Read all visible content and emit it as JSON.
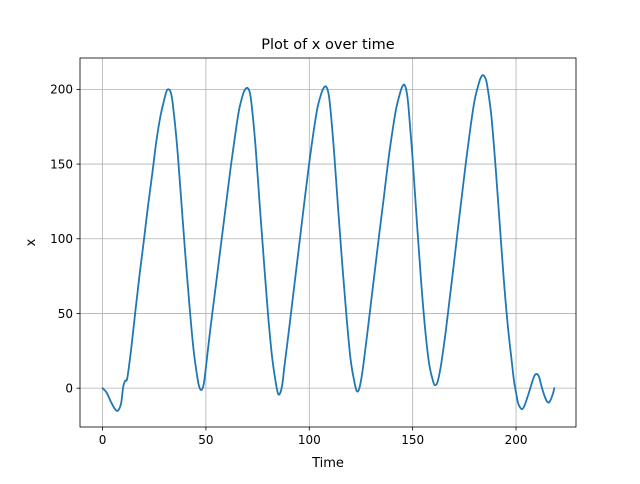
{
  "chart_data": {
    "type": "line",
    "title": "Plot of x over time",
    "xlabel": "Time",
    "ylabel": "x",
    "xlim": [
      -10.9,
      229
    ],
    "ylim": [
      -26,
      221
    ],
    "xticks": [
      0,
      50,
      100,
      150,
      200
    ],
    "yticks": [
      0,
      50,
      100,
      150,
      200
    ],
    "grid": true,
    "line_color": "#1f77b4",
    "series": [
      {
        "points": [
          [
            0,
            0
          ],
          [
            2,
            -3
          ],
          [
            4,
            -9
          ],
          [
            6,
            -14
          ],
          [
            7.5,
            -15
          ],
          [
            9,
            -10
          ],
          [
            10,
            1
          ],
          [
            11,
            5
          ],
          [
            12,
            7
          ],
          [
            14,
            28
          ],
          [
            16,
            53
          ],
          [
            18,
            77
          ],
          [
            20,
            99
          ],
          [
            22,
            122
          ],
          [
            24,
            143
          ],
          [
            26,
            165
          ],
          [
            28,
            182
          ],
          [
            30,
            194
          ],
          [
            31,
            199
          ],
          [
            32,
            200
          ],
          [
            33,
            198
          ],
          [
            34,
            190
          ],
          [
            36,
            163
          ],
          [
            38,
            127
          ],
          [
            40,
            90
          ],
          [
            42,
            56
          ],
          [
            44,
            26
          ],
          [
            46,
            6
          ],
          [
            47,
            0
          ],
          [
            48,
            -1
          ],
          [
            49,
            3
          ],
          [
            50,
            14
          ],
          [
            52,
            38
          ],
          [
            54,
            60
          ],
          [
            56,
            82
          ],
          [
            58,
            104
          ],
          [
            60,
            126
          ],
          [
            62,
            148
          ],
          [
            64,
            168
          ],
          [
            66,
            186
          ],
          [
            68,
            197
          ],
          [
            69,
            200
          ],
          [
            70,
            201
          ],
          [
            71,
            199
          ],
          [
            72,
            191
          ],
          [
            74,
            162
          ],
          [
            76,
            123
          ],
          [
            78,
            86
          ],
          [
            80,
            50
          ],
          [
            82,
            21
          ],
          [
            84,
            2
          ],
          [
            85,
            -4
          ],
          [
            86,
            -3
          ],
          [
            87,
            3
          ],
          [
            88,
            15
          ],
          [
            90,
            37
          ],
          [
            92,
            60
          ],
          [
            94,
            83
          ],
          [
            96,
            106
          ],
          [
            98,
            129
          ],
          [
            100,
            151
          ],
          [
            102,
            171
          ],
          [
            104,
            188
          ],
          [
            106,
            198
          ],
          [
            107,
            201
          ],
          [
            108,
            202
          ],
          [
            109,
            199
          ],
          [
            110,
            190
          ],
          [
            112,
            158
          ],
          [
            114,
            119
          ],
          [
            116,
            82
          ],
          [
            118,
            48
          ],
          [
            120,
            19
          ],
          [
            122,
            3
          ],
          [
            123,
            -2
          ],
          [
            124,
            -1
          ],
          [
            125,
            5
          ],
          [
            126,
            14
          ],
          [
            128,
            36
          ],
          [
            130,
            59
          ],
          [
            132,
            82
          ],
          [
            134,
            105
          ],
          [
            136,
            127
          ],
          [
            138,
            150
          ],
          [
            140,
            170
          ],
          [
            142,
            187
          ],
          [
            144,
            198
          ],
          [
            145,
            202
          ],
          [
            146,
            203
          ],
          [
            147,
            199
          ],
          [
            148,
            188
          ],
          [
            150,
            153
          ],
          [
            152,
            112
          ],
          [
            154,
            73
          ],
          [
            156,
            40
          ],
          [
            158,
            16
          ],
          [
            160,
            4
          ],
          [
            161,
            2
          ],
          [
            162,
            4
          ],
          [
            163,
            10
          ],
          [
            164,
            18
          ],
          [
            166,
            38
          ],
          [
            168,
            61
          ],
          [
            170,
            84
          ],
          [
            172,
            108
          ],
          [
            174,
            131
          ],
          [
            176,
            154
          ],
          [
            178,
            175
          ],
          [
            180,
            193
          ],
          [
            182,
            204
          ],
          [
            183,
            208
          ],
          [
            184,
            209.5
          ],
          [
            185,
            208
          ],
          [
            186,
            203
          ],
          [
            188,
            183
          ],
          [
            190,
            150
          ],
          [
            192,
            112
          ],
          [
            194,
            74
          ],
          [
            196,
            42
          ],
          [
            198,
            17
          ],
          [
            199,
            5
          ],
          [
            200,
            -3
          ],
          [
            201,
            -10
          ],
          [
            202,
            -13
          ],
          [
            203,
            -14
          ],
          [
            204,
            -12
          ],
          [
            206,
            -4
          ],
          [
            208,
            5
          ],
          [
            209,
            8.5
          ],
          [
            210,
            9.5
          ],
          [
            211,
            8
          ],
          [
            212,
            3
          ],
          [
            213,
            -2
          ],
          [
            214,
            -6
          ],
          [
            215,
            -9
          ],
          [
            216,
            -9.5
          ],
          [
            217,
            -7
          ],
          [
            218,
            -3
          ],
          [
            218.5,
            0
          ]
        ]
      }
    ]
  }
}
